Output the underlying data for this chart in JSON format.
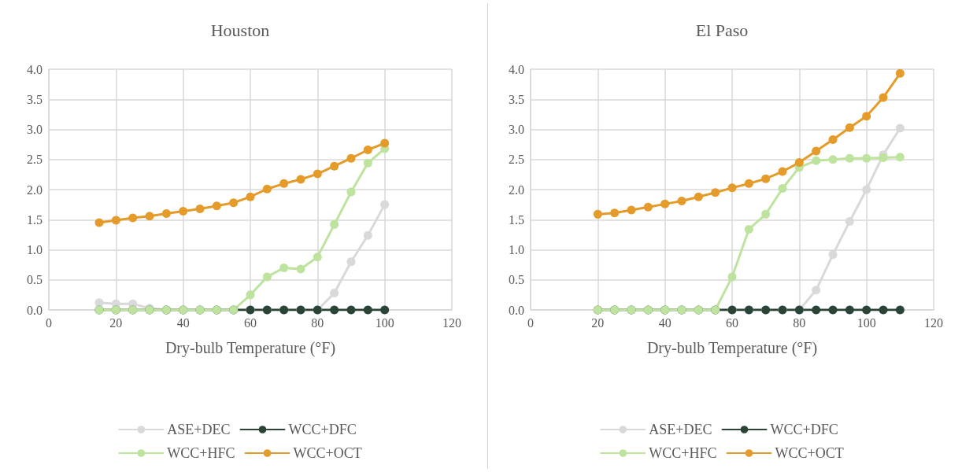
{
  "chart_data": [
    {
      "type": "line",
      "title": "Houston",
      "xlabel": "Dry-bulb Temperature (°F)",
      "x": [
        15,
        20,
        25,
        30,
        35,
        40,
        45,
        50,
        55,
        60,
        65,
        70,
        75,
        80,
        85,
        90,
        95,
        100
      ],
      "series": [
        {
          "name": "ASE+DEC",
          "color": "#d9d9d9",
          "values": [
            0.12,
            0.1,
            0.1,
            0.03,
            0,
            0,
            0,
            0,
            0,
            0,
            0,
            0,
            0,
            0,
            0.28,
            0.8,
            1.24,
            1.75
          ]
        },
        {
          "name": "WCC+DFC",
          "color": "#2a4536",
          "values": [
            0,
            0,
            0,
            0,
            0,
            0,
            0,
            0,
            0,
            0,
            0,
            0,
            0,
            0,
            0,
            0,
            0,
            0
          ]
        },
        {
          "name": "WCC+HFC",
          "color": "#bde39e",
          "values": [
            0,
            0,
            0,
            0,
            0,
            0,
            0,
            0,
            0,
            0.25,
            0.55,
            0.7,
            0.68,
            0.88,
            1.42,
            1.96,
            2.44,
            2.68
          ]
        },
        {
          "name": "WCC+OCT",
          "color": "#e49b2a",
          "values": [
            1.45,
            1.49,
            1.53,
            1.56,
            1.6,
            1.64,
            1.68,
            1.73,
            1.78,
            1.88,
            2.01,
            2.1,
            2.17,
            2.26,
            2.39,
            2.52,
            2.66,
            2.77
          ]
        }
      ],
      "xlim": [
        0,
        120
      ],
      "xticks": [
        0,
        20,
        40,
        60,
        80,
        100,
        120
      ],
      "ylim": [
        0,
        4
      ],
      "yticks": [
        {
          "value": 0,
          "label": "0.0"
        },
        0.5,
        {
          "value": 1,
          "label": "1.0"
        },
        1.5,
        {
          "value": 2,
          "label": "2.0"
        },
        2.5,
        {
          "value": 3,
          "label": "3.0"
        },
        3.5,
        {
          "value": 4,
          "label": "4.0"
        }
      ],
      "grid": true,
      "legend": "bottom",
      "marker": "circle",
      "line_style": "solid"
    },
    {
      "type": "line",
      "title": "El Paso",
      "xlabel": "Dry-bulb Temperature (°F)",
      "x": [
        20,
        25,
        30,
        35,
        40,
        45,
        50,
        55,
        60,
        65,
        70,
        75,
        80,
        85,
        90,
        95,
        100,
        105,
        110
      ],
      "series": [
        {
          "name": "ASE+DEC",
          "color": "#d9d9d9",
          "values": [
            0,
            0,
            0,
            0,
            0,
            0,
            0,
            0,
            0,
            0,
            0,
            0,
            0,
            0.33,
            0.92,
            1.47,
            2.0,
            2.58,
            3.02
          ]
        },
        {
          "name": "WCC+DFC",
          "color": "#2a4536",
          "values": [
            0,
            0,
            0,
            0,
            0,
            0,
            0,
            0,
            0,
            0,
            0,
            0,
            0,
            0,
            0,
            0,
            0,
            0,
            0
          ]
        },
        {
          "name": "WCC+HFC",
          "color": "#bde39e",
          "values": [
            0,
            0,
            0,
            0,
            0,
            0,
            0,
            0,
            0.55,
            1.34,
            1.59,
            2.02,
            2.37,
            2.48,
            2.5,
            2.52,
            2.52,
            2.53,
            2.54
          ]
        },
        {
          "name": "WCC+OCT",
          "color": "#e49b2a",
          "values": [
            1.59,
            1.61,
            1.66,
            1.71,
            1.76,
            1.81,
            1.88,
            1.95,
            2.03,
            2.1,
            2.18,
            2.3,
            2.45,
            2.64,
            2.83,
            3.03,
            3.22,
            3.53,
            3.93
          ]
        }
      ],
      "xlim": [
        0,
        120
      ],
      "xticks": [
        0,
        20,
        40,
        60,
        80,
        100,
        120
      ],
      "ylim": [
        0,
        4
      ],
      "yticks": [
        {
          "value": 0,
          "label": "0.0"
        },
        0.5,
        {
          "value": 1,
          "label": "1.0"
        },
        1.5,
        {
          "value": 2,
          "label": "2.0"
        },
        2.5,
        {
          "value": 3,
          "label": "3.0"
        },
        3.5,
        {
          "value": 4,
          "label": "4.0"
        }
      ],
      "grid": true,
      "legend": "bottom",
      "marker": "circle",
      "line_style": "solid"
    }
  ]
}
